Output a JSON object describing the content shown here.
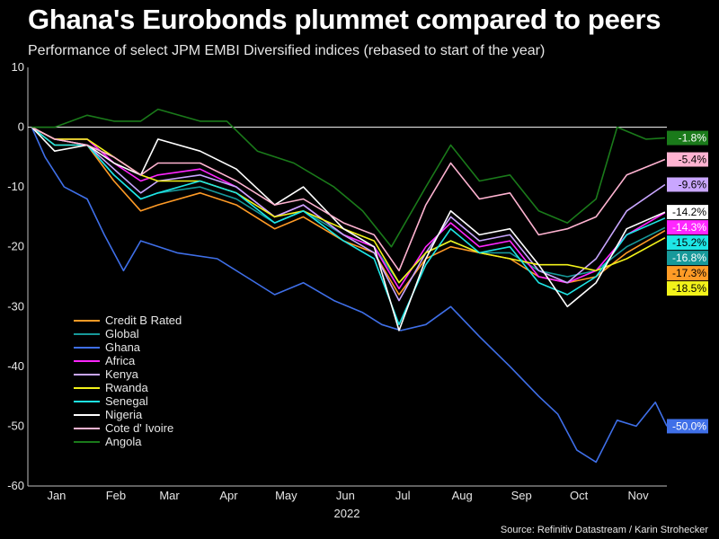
{
  "title": "Ghana's Eurobonds plummet compared to peers",
  "subtitle": "Performance of select JPM EMBI Diversified indices (rebased to start of the year)",
  "source": "Source: Refinitiv Datastream / Karin Strohecker",
  "chart_data": {
    "type": "line",
    "title": "Ghana's Eurobonds plummet compared to peers",
    "xlabel": "2022",
    "ylabel": "",
    "ylim": [
      -60,
      10
    ],
    "yticks": [
      10,
      0,
      -10,
      -20,
      -30,
      -40,
      -50,
      -60
    ],
    "x_tick_labels": [
      "Jan",
      "Feb",
      "Mar",
      "Apr",
      "May",
      "Jun",
      "Jul",
      "Aug",
      "Sep",
      "Oct",
      "Nov"
    ],
    "x_start": "2022-01-01",
    "x_end": "2022-12-01",
    "grid": false,
    "legend_position": "bottom-left",
    "series": [
      {
        "name": "Credit B Rated",
        "color": "#ff9b26",
        "end_label": "-17.3%",
        "points": [
          [
            "2022-01-03",
            0
          ],
          [
            "2022-01-15",
            -3
          ],
          [
            "2022-02-01",
            -3
          ],
          [
            "2022-02-15",
            -9
          ],
          [
            "2022-03-01",
            -14
          ],
          [
            "2022-03-10",
            -13
          ],
          [
            "2022-04-01",
            -11
          ],
          [
            "2022-04-20",
            -13
          ],
          [
            "2022-05-10",
            -17
          ],
          [
            "2022-05-25",
            -15
          ],
          [
            "2022-06-15",
            -19
          ],
          [
            "2022-07-01",
            -21
          ],
          [
            "2022-07-14",
            -28
          ],
          [
            "2022-07-28",
            -22
          ],
          [
            "2022-08-10",
            -20
          ],
          [
            "2022-08-25",
            -21
          ],
          [
            "2022-09-10",
            -22
          ],
          [
            "2022-09-25",
            -25
          ],
          [
            "2022-10-10",
            -26
          ],
          [
            "2022-10-25",
            -25
          ],
          [
            "2022-11-10",
            -21
          ],
          [
            "2022-11-30",
            -17.3
          ]
        ]
      },
      {
        "name": "Global",
        "color": "#17999a",
        "end_label": "-16.8%",
        "points": [
          [
            "2022-01-03",
            0
          ],
          [
            "2022-01-15",
            -2
          ],
          [
            "2022-02-01",
            -3
          ],
          [
            "2022-02-15",
            -8
          ],
          [
            "2022-03-01",
            -12
          ],
          [
            "2022-03-10",
            -11
          ],
          [
            "2022-04-01",
            -10
          ],
          [
            "2022-04-20",
            -12
          ],
          [
            "2022-05-10",
            -16
          ],
          [
            "2022-05-25",
            -14
          ],
          [
            "2022-06-15",
            -18
          ],
          [
            "2022-07-01",
            -20
          ],
          [
            "2022-07-14",
            -26
          ],
          [
            "2022-07-28",
            -21
          ],
          [
            "2022-08-10",
            -19
          ],
          [
            "2022-08-25",
            -21
          ],
          [
            "2022-09-10",
            -21
          ],
          [
            "2022-09-25",
            -24
          ],
          [
            "2022-10-10",
            -25
          ],
          [
            "2022-10-25",
            -24
          ],
          [
            "2022-11-10",
            -20
          ],
          [
            "2022-11-30",
            -16.8
          ]
        ]
      },
      {
        "name": "Ghana",
        "color": "#3f6fe8",
        "end_label": "-50.0%",
        "points": [
          [
            "2022-01-03",
            0
          ],
          [
            "2022-01-10",
            -5
          ],
          [
            "2022-01-20",
            -10
          ],
          [
            "2022-02-01",
            -12
          ],
          [
            "2022-02-10",
            -18
          ],
          [
            "2022-02-20",
            -24
          ],
          [
            "2022-03-01",
            -19
          ],
          [
            "2022-03-20",
            -21
          ],
          [
            "2022-04-10",
            -22
          ],
          [
            "2022-04-25",
            -25
          ],
          [
            "2022-05-10",
            -28
          ],
          [
            "2022-05-25",
            -26
          ],
          [
            "2022-06-10",
            -29
          ],
          [
            "2022-06-25",
            -31
          ],
          [
            "2022-07-05",
            -33
          ],
          [
            "2022-07-15",
            -34
          ],
          [
            "2022-07-28",
            -33
          ],
          [
            "2022-08-10",
            -30
          ],
          [
            "2022-08-25",
            -35
          ],
          [
            "2022-09-10",
            -40
          ],
          [
            "2022-09-25",
            -45
          ],
          [
            "2022-10-05",
            -48
          ],
          [
            "2022-10-15",
            -54
          ],
          [
            "2022-10-25",
            -56
          ],
          [
            "2022-11-05",
            -49
          ],
          [
            "2022-11-15",
            -50
          ],
          [
            "2022-11-25",
            -46
          ],
          [
            "2022-12-01",
            -50
          ]
        ]
      },
      {
        "name": "Africa",
        "color": "#ff26ff",
        "end_label": "-14.3%",
        "points": [
          [
            "2022-01-03",
            0
          ],
          [
            "2022-01-15",
            -2
          ],
          [
            "2022-02-01",
            -2
          ],
          [
            "2022-02-15",
            -6
          ],
          [
            "2022-03-01",
            -9
          ],
          [
            "2022-03-10",
            -8
          ],
          [
            "2022-04-01",
            -7
          ],
          [
            "2022-04-20",
            -10
          ],
          [
            "2022-05-10",
            -15
          ],
          [
            "2022-05-25",
            -13
          ],
          [
            "2022-06-15",
            -18
          ],
          [
            "2022-07-01",
            -20
          ],
          [
            "2022-07-14",
            -27
          ],
          [
            "2022-07-28",
            -20
          ],
          [
            "2022-08-10",
            -16
          ],
          [
            "2022-08-25",
            -20
          ],
          [
            "2022-09-10",
            -19
          ],
          [
            "2022-09-25",
            -25
          ],
          [
            "2022-10-10",
            -26
          ],
          [
            "2022-10-25",
            -24
          ],
          [
            "2022-11-10",
            -18
          ],
          [
            "2022-11-30",
            -14.3
          ]
        ]
      },
      {
        "name": "Kenya",
        "color": "#c9a6ff",
        "end_label": "-9.6%",
        "points": [
          [
            "2022-01-03",
            0
          ],
          [
            "2022-01-15",
            -2
          ],
          [
            "2022-02-01",
            -3
          ],
          [
            "2022-02-15",
            -7
          ],
          [
            "2022-03-01",
            -11
          ],
          [
            "2022-03-10",
            -9
          ],
          [
            "2022-04-01",
            -8
          ],
          [
            "2022-04-20",
            -10
          ],
          [
            "2022-05-10",
            -15
          ],
          [
            "2022-05-25",
            -13
          ],
          [
            "2022-06-15",
            -18
          ],
          [
            "2022-07-01",
            -21
          ],
          [
            "2022-07-14",
            -29
          ],
          [
            "2022-07-28",
            -21
          ],
          [
            "2022-08-10",
            -15
          ],
          [
            "2022-08-25",
            -19
          ],
          [
            "2022-09-10",
            -18
          ],
          [
            "2022-09-25",
            -24
          ],
          [
            "2022-10-10",
            -26
          ],
          [
            "2022-10-25",
            -22
          ],
          [
            "2022-11-10",
            -14
          ],
          [
            "2022-11-30",
            -9.6
          ]
        ]
      },
      {
        "name": "Rwanda",
        "color": "#f2f21a",
        "end_label": "-18.5%",
        "points": [
          [
            "2022-01-03",
            0
          ],
          [
            "2022-01-15",
            -2
          ],
          [
            "2022-02-01",
            -2
          ],
          [
            "2022-02-15",
            -5
          ],
          [
            "2022-03-01",
            -8
          ],
          [
            "2022-03-10",
            -9
          ],
          [
            "2022-04-01",
            -9
          ],
          [
            "2022-04-20",
            -11
          ],
          [
            "2022-05-10",
            -15
          ],
          [
            "2022-05-25",
            -14
          ],
          [
            "2022-06-15",
            -17
          ],
          [
            "2022-07-01",
            -19
          ],
          [
            "2022-07-14",
            -26
          ],
          [
            "2022-07-28",
            -21
          ],
          [
            "2022-08-10",
            -19
          ],
          [
            "2022-08-25",
            -21
          ],
          [
            "2022-09-10",
            -22
          ],
          [
            "2022-09-25",
            -23
          ],
          [
            "2022-10-10",
            -23
          ],
          [
            "2022-10-25",
            -24
          ],
          [
            "2022-11-10",
            -22
          ],
          [
            "2022-11-30",
            -18.5
          ]
        ]
      },
      {
        "name": "Senegal",
        "color": "#1ee6e6",
        "end_label": "-15.2%",
        "points": [
          [
            "2022-01-03",
            0
          ],
          [
            "2022-01-15",
            -3
          ],
          [
            "2022-02-01",
            -3
          ],
          [
            "2022-02-15",
            -8
          ],
          [
            "2022-03-01",
            -12
          ],
          [
            "2022-03-10",
            -11
          ],
          [
            "2022-04-01",
            -9
          ],
          [
            "2022-04-20",
            -11
          ],
          [
            "2022-05-10",
            -16
          ],
          [
            "2022-05-25",
            -14
          ],
          [
            "2022-06-15",
            -19
          ],
          [
            "2022-07-01",
            -22
          ],
          [
            "2022-07-14",
            -33
          ],
          [
            "2022-07-28",
            -23
          ],
          [
            "2022-08-10",
            -17
          ],
          [
            "2022-08-25",
            -21
          ],
          [
            "2022-09-10",
            -20
          ],
          [
            "2022-09-25",
            -26
          ],
          [
            "2022-10-10",
            -28
          ],
          [
            "2022-10-25",
            -25
          ],
          [
            "2022-11-10",
            -18
          ],
          [
            "2022-11-30",
            -15.2
          ]
        ]
      },
      {
        "name": "Nigeria",
        "color": "#ffffff",
        "end_label": "-14.2%",
        "points": [
          [
            "2022-01-03",
            0
          ],
          [
            "2022-01-15",
            -4
          ],
          [
            "2022-02-01",
            -3
          ],
          [
            "2022-02-15",
            -6
          ],
          [
            "2022-03-01",
            -8
          ],
          [
            "2022-03-10",
            -2
          ],
          [
            "2022-04-01",
            -4
          ],
          [
            "2022-04-20",
            -7
          ],
          [
            "2022-05-10",
            -13
          ],
          [
            "2022-05-25",
            -10
          ],
          [
            "2022-06-15",
            -17
          ],
          [
            "2022-07-01",
            -20
          ],
          [
            "2022-07-14",
            -34
          ],
          [
            "2022-07-28",
            -22
          ],
          [
            "2022-08-10",
            -14
          ],
          [
            "2022-08-25",
            -18
          ],
          [
            "2022-09-10",
            -17
          ],
          [
            "2022-09-25",
            -23
          ],
          [
            "2022-10-10",
            -30
          ],
          [
            "2022-10-25",
            -26
          ],
          [
            "2022-11-10",
            -17
          ],
          [
            "2022-11-30",
            -14.2
          ]
        ]
      },
      {
        "name": "Cote d' Ivoire",
        "color": "#ffb3d1",
        "end_label": "-5.4%",
        "points": [
          [
            "2022-01-03",
            0
          ],
          [
            "2022-01-15",
            -2
          ],
          [
            "2022-02-01",
            -3
          ],
          [
            "2022-02-15",
            -5
          ],
          [
            "2022-03-01",
            -8
          ],
          [
            "2022-03-10",
            -6
          ],
          [
            "2022-04-01",
            -6
          ],
          [
            "2022-04-20",
            -9
          ],
          [
            "2022-05-10",
            -13
          ],
          [
            "2022-05-25",
            -12
          ],
          [
            "2022-06-15",
            -16
          ],
          [
            "2022-07-01",
            -18
          ],
          [
            "2022-07-14",
            -24
          ],
          [
            "2022-07-28",
            -13
          ],
          [
            "2022-08-10",
            -6
          ],
          [
            "2022-08-25",
            -12
          ],
          [
            "2022-09-10",
            -11
          ],
          [
            "2022-09-25",
            -18
          ],
          [
            "2022-10-10",
            -17
          ],
          [
            "2022-10-25",
            -15
          ],
          [
            "2022-11-10",
            -8
          ],
          [
            "2022-11-30",
            -5.4
          ]
        ]
      },
      {
        "name": "Angola",
        "color": "#1a7a1a",
        "end_label": "-1.8%",
        "points": [
          [
            "2022-01-03",
            0
          ],
          [
            "2022-01-15",
            0
          ],
          [
            "2022-02-01",
            2
          ],
          [
            "2022-02-15",
            1
          ],
          [
            "2022-03-01",
            1
          ],
          [
            "2022-03-10",
            3
          ],
          [
            "2022-04-01",
            1
          ],
          [
            "2022-04-15",
            1
          ],
          [
            "2022-05-01",
            -4
          ],
          [
            "2022-05-20",
            -6
          ],
          [
            "2022-06-10",
            -10
          ],
          [
            "2022-06-25",
            -14
          ],
          [
            "2022-07-10",
            -20
          ],
          [
            "2022-07-28",
            -10
          ],
          [
            "2022-08-10",
            -3
          ],
          [
            "2022-08-25",
            -9
          ],
          [
            "2022-09-10",
            -8
          ],
          [
            "2022-09-25",
            -14
          ],
          [
            "2022-10-10",
            -16
          ],
          [
            "2022-10-25",
            -12
          ],
          [
            "2022-11-05",
            0
          ],
          [
            "2022-11-20",
            -2
          ],
          [
            "2022-11-30",
            -1.8
          ]
        ]
      }
    ]
  }
}
